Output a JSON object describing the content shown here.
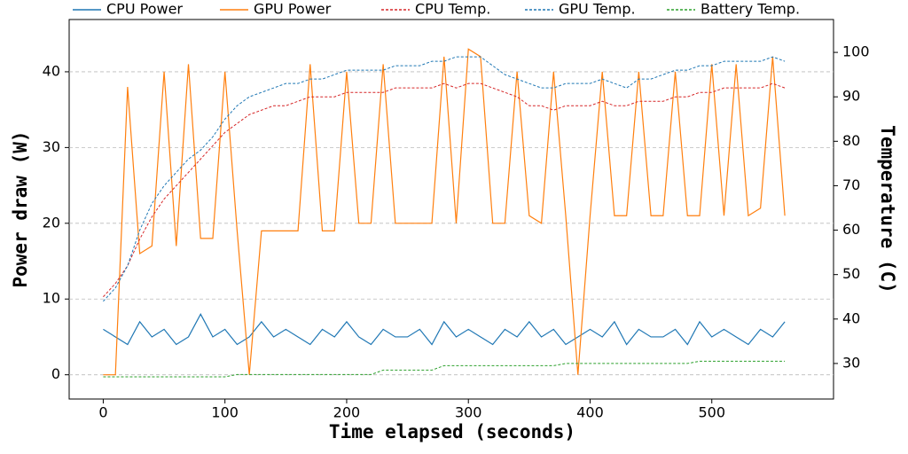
{
  "chart_data": {
    "type": "line",
    "xlabel": "Time elapsed (seconds)",
    "ylabel": "Power draw (W)",
    "y2label": "Temperature (C)",
    "x": [
      0,
      10,
      20,
      30,
      40,
      50,
      60,
      70,
      80,
      90,
      100,
      110,
      120,
      130,
      140,
      150,
      160,
      170,
      180,
      190,
      200,
      210,
      220,
      230,
      240,
      250,
      260,
      270,
      280,
      290,
      300,
      310,
      320,
      330,
      340,
      350,
      360,
      370,
      380,
      390,
      400,
      410,
      420,
      430,
      440,
      450,
      460,
      470,
      480,
      490,
      500,
      510,
      520,
      530,
      540,
      550,
      560
    ],
    "xlim": [
      -28,
      600
    ],
    "xticks": [
      0,
      100,
      200,
      300,
      400,
      500
    ],
    "ylim": [
      -3.2,
      46.9
    ],
    "yticks": [
      0,
      10,
      20,
      30,
      40
    ],
    "y2lim": [
      22,
      107.4
    ],
    "y2ticks": [
      30,
      40,
      50,
      60,
      70,
      80,
      90,
      100
    ],
    "grid": true,
    "series": [
      {
        "name": "CPU Power",
        "color": "#1f77b4",
        "style": "solid",
        "values": [
          6,
          5,
          4,
          7,
          5,
          6,
          4,
          5,
          8,
          5,
          6,
          4,
          5,
          7,
          5,
          6,
          5,
          4,
          6,
          5,
          7,
          5,
          4,
          6,
          5,
          5,
          6,
          4,
          7,
          5,
          6,
          5,
          4,
          6,
          5,
          7,
          5,
          6,
          4,
          5,
          6,
          5,
          7,
          4,
          6,
          5,
          5,
          6,
          4,
          7,
          5,
          6,
          5,
          4,
          6,
          5,
          7
        ]
      },
      {
        "name": "GPU Power",
        "color": "#ff7f0e",
        "style": "solid",
        "values": [
          0,
          0,
          38,
          16,
          17,
          40,
          17,
          41,
          18,
          18,
          40,
          19,
          0,
          19,
          19,
          19,
          19,
          41,
          19,
          19,
          40,
          20,
          20,
          41,
          20,
          20,
          20,
          20,
          42,
          20,
          43,
          42,
          20,
          20,
          40,
          21,
          20,
          40,
          21,
          0,
          21,
          40,
          21,
          21,
          40,
          21,
          21,
          40,
          21,
          21,
          41,
          21,
          41,
          21,
          22,
          42,
          21
        ]
      },
      {
        "name": "CPU Temp.",
        "color": "#d62728",
        "style": "dashed",
        "axis": "y2",
        "values": [
          45,
          48,
          52,
          58,
          63,
          67,
          70,
          73,
          76,
          79,
          82,
          84,
          86,
          87,
          88,
          88,
          89,
          90,
          90,
          90,
          91,
          91,
          91,
          91,
          92,
          92,
          92,
          92,
          93,
          92,
          93,
          93,
          92,
          91,
          90,
          88,
          88,
          87,
          88,
          88,
          88,
          89,
          88,
          88,
          89,
          89,
          89,
          90,
          90,
          91,
          91,
          92,
          92,
          92,
          92,
          93,
          92
        ]
      },
      {
        "name": "GPU Temp.",
        "color": "#1f77b4",
        "style": "dashed",
        "axis": "y2",
        "values": [
          44,
          47,
          52,
          60,
          66,
          70,
          73,
          76,
          78,
          81,
          85,
          88,
          90,
          91,
          92,
          93,
          93,
          94,
          94,
          95,
          96,
          96,
          96,
          96,
          97,
          97,
          97,
          98,
          98,
          99,
          99,
          99,
          97,
          95,
          94,
          93,
          92,
          92,
          93,
          93,
          93,
          94,
          93,
          92,
          94,
          94,
          95,
          96,
          96,
          97,
          97,
          98,
          98,
          98,
          98,
          99,
          98
        ]
      },
      {
        "name": "Battery Temp.",
        "color": "#2ca02c",
        "style": "dashed",
        "axis": "y2",
        "values": [
          27,
          27,
          27,
          27,
          27,
          27,
          27,
          27,
          27,
          27,
          27,
          27.5,
          27.5,
          27.5,
          27.5,
          27.5,
          27.5,
          27.5,
          27.5,
          27.5,
          27.5,
          27.5,
          27.5,
          28.5,
          28.5,
          28.5,
          28.5,
          28.5,
          29.5,
          29.5,
          29.5,
          29.5,
          29.5,
          29.5,
          29.5,
          29.5,
          29.5,
          29.5,
          30,
          30,
          30,
          30,
          30,
          30,
          30,
          30,
          30,
          30,
          30,
          30.5,
          30.5,
          30.5,
          30.5,
          30.5,
          30.5,
          30.5,
          30.5
        ]
      }
    ]
  }
}
